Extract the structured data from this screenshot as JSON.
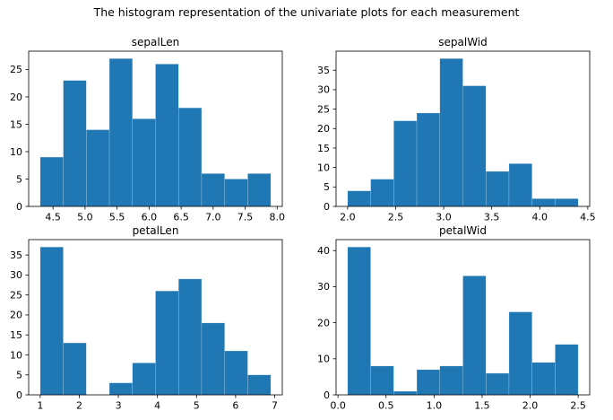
{
  "figure": {
    "suptitle": "The histogram representation of the univariate plots for each measurement",
    "bar_color": "#1f77b4",
    "axis_color": "#000000",
    "background": "#ffffff"
  },
  "chart_data": [
    {
      "type": "bar",
      "title": "sepalLen",
      "bin_start": 4.3,
      "bin_end": 7.9,
      "values": [
        9,
        23,
        14,
        27,
        16,
        26,
        18,
        6,
        5,
        6
      ],
      "xlim": [
        4.12,
        8.08
      ],
      "ylim": [
        0,
        28.35
      ],
      "xtick_labels": [
        "4.5",
        "5.0",
        "5.5",
        "6.0",
        "6.5",
        "7.0",
        "7.5",
        "8.0"
      ],
      "yticks": [
        0,
        5,
        10,
        15,
        20,
        25
      ],
      "grid": false,
      "legend": null
    },
    {
      "type": "bar",
      "title": "sepalWid",
      "bin_start": 2.0,
      "bin_end": 4.4,
      "values": [
        4,
        7,
        22,
        24,
        38,
        31,
        9,
        11,
        2,
        2
      ],
      "xlim": [
        1.88,
        4.52
      ],
      "ylim": [
        0,
        39.9
      ],
      "xtick_labels": [
        "2.0",
        "2.5",
        "3.0",
        "3.5",
        "4.0",
        "4.5"
      ],
      "yticks": [
        0,
        5,
        10,
        15,
        20,
        25,
        30,
        35
      ],
      "grid": false,
      "legend": null
    },
    {
      "type": "bar",
      "title": "petalLen",
      "bin_start": 1.0,
      "bin_end": 6.9,
      "values": [
        37,
        13,
        0,
        3,
        8,
        26,
        29,
        18,
        11,
        5
      ],
      "xlim": [
        0.705,
        7.195
      ],
      "ylim": [
        0,
        38.85
      ],
      "xtick_labels": [
        "1",
        "2",
        "3",
        "4",
        "5",
        "6",
        "7"
      ],
      "yticks": [
        0,
        5,
        10,
        15,
        20,
        25,
        30,
        35
      ],
      "grid": false,
      "legend": null
    },
    {
      "type": "bar",
      "title": "petalWid",
      "bin_start": 0.1,
      "bin_end": 2.5,
      "values": [
        41,
        8,
        1,
        7,
        8,
        33,
        6,
        23,
        9,
        14
      ],
      "xlim": [
        -0.02,
        2.62
      ],
      "ylim": [
        0,
        43.05
      ],
      "xtick_labels": [
        "0.0",
        "0.5",
        "1.0",
        "1.5",
        "2.0",
        "2.5"
      ],
      "yticks": [
        0,
        10,
        20,
        30,
        40
      ],
      "grid": false,
      "legend": null
    }
  ]
}
